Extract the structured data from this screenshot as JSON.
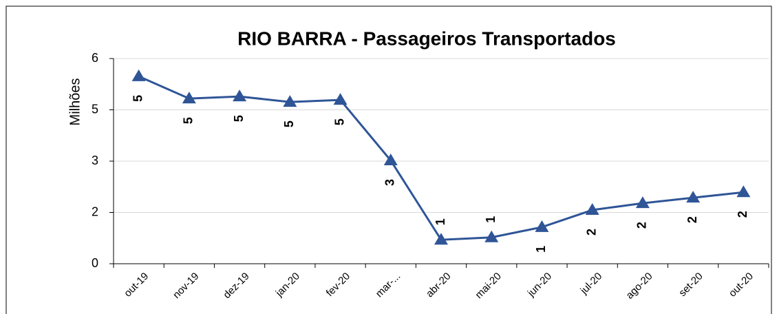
{
  "chart_data": {
    "type": "line",
    "title": "RIO BARRA - Passageiros Transportados",
    "y_label": "Milhões",
    "categories": [
      "out-19",
      "nov-19",
      "dez-19",
      "jan-20",
      "fev-20",
      "mar-...",
      "abr-20",
      "mai-20",
      "jun-20",
      "jul-20",
      "ago-20",
      "set-20",
      "out-20"
    ],
    "series": [
      {
        "name": "Passageiros",
        "color": "#2f5597",
        "values": [
          5.48,
          4.83,
          4.89,
          4.73,
          4.79,
          3.02,
          0.7,
          0.77,
          1.07,
          1.57,
          1.77,
          1.93,
          2.09
        ],
        "value_labels": [
          "5",
          "5",
          "5",
          "5",
          "5",
          "3",
          "1",
          "1",
          "1",
          "2",
          "2",
          "2",
          "2"
        ]
      }
    ],
    "ylim": [
      0,
      6
    ],
    "yticks": [
      0,
      {
        "value": 1.5,
        "label": "2"
      },
      3,
      {
        "value": 4.5,
        "label": "5"
      },
      6
    ],
    "grid": true
  }
}
